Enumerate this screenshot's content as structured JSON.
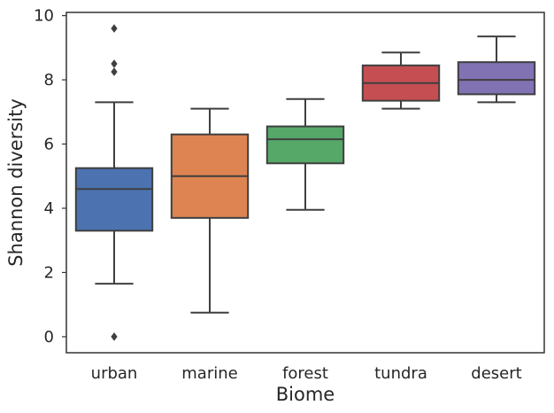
{
  "chart_data": {
    "type": "box",
    "title": "",
    "xlabel": "Biome",
    "ylabel": "Shannon diversity",
    "ylim": [
      -0.5,
      10.1
    ],
    "yticks": [
      0,
      2,
      4,
      6,
      8,
      10
    ],
    "grid": false,
    "categories": [
      "urban",
      "marine",
      "forest",
      "tundra",
      "desert"
    ],
    "colors": [
      "#4c72b0",
      "#dd8452",
      "#55a868",
      "#c44e52",
      "#8172b3"
    ],
    "line_color": "#3f3f3f",
    "boxes": [
      {
        "category": "urban",
        "whisker_low": 1.65,
        "q1": 3.3,
        "median": 4.6,
        "q3": 5.25,
        "whisker_high": 7.3,
        "outliers": [
          0.0,
          8.25,
          8.5,
          9.6
        ]
      },
      {
        "category": "marine",
        "whisker_low": 0.75,
        "q1": 3.7,
        "median": 5.0,
        "q3": 6.3,
        "whisker_high": 7.1,
        "outliers": []
      },
      {
        "category": "forest",
        "whisker_low": 3.95,
        "q1": 5.4,
        "median": 6.15,
        "q3": 6.55,
        "whisker_high": 7.4,
        "outliers": []
      },
      {
        "category": "tundra",
        "whisker_low": 7.1,
        "q1": 7.35,
        "median": 7.9,
        "q3": 8.45,
        "whisker_high": 8.85,
        "outliers": []
      },
      {
        "category": "desert",
        "whisker_low": 7.3,
        "q1": 7.55,
        "median": 8.0,
        "q3": 8.55,
        "whisker_high": 9.35,
        "outliers": []
      }
    ]
  }
}
